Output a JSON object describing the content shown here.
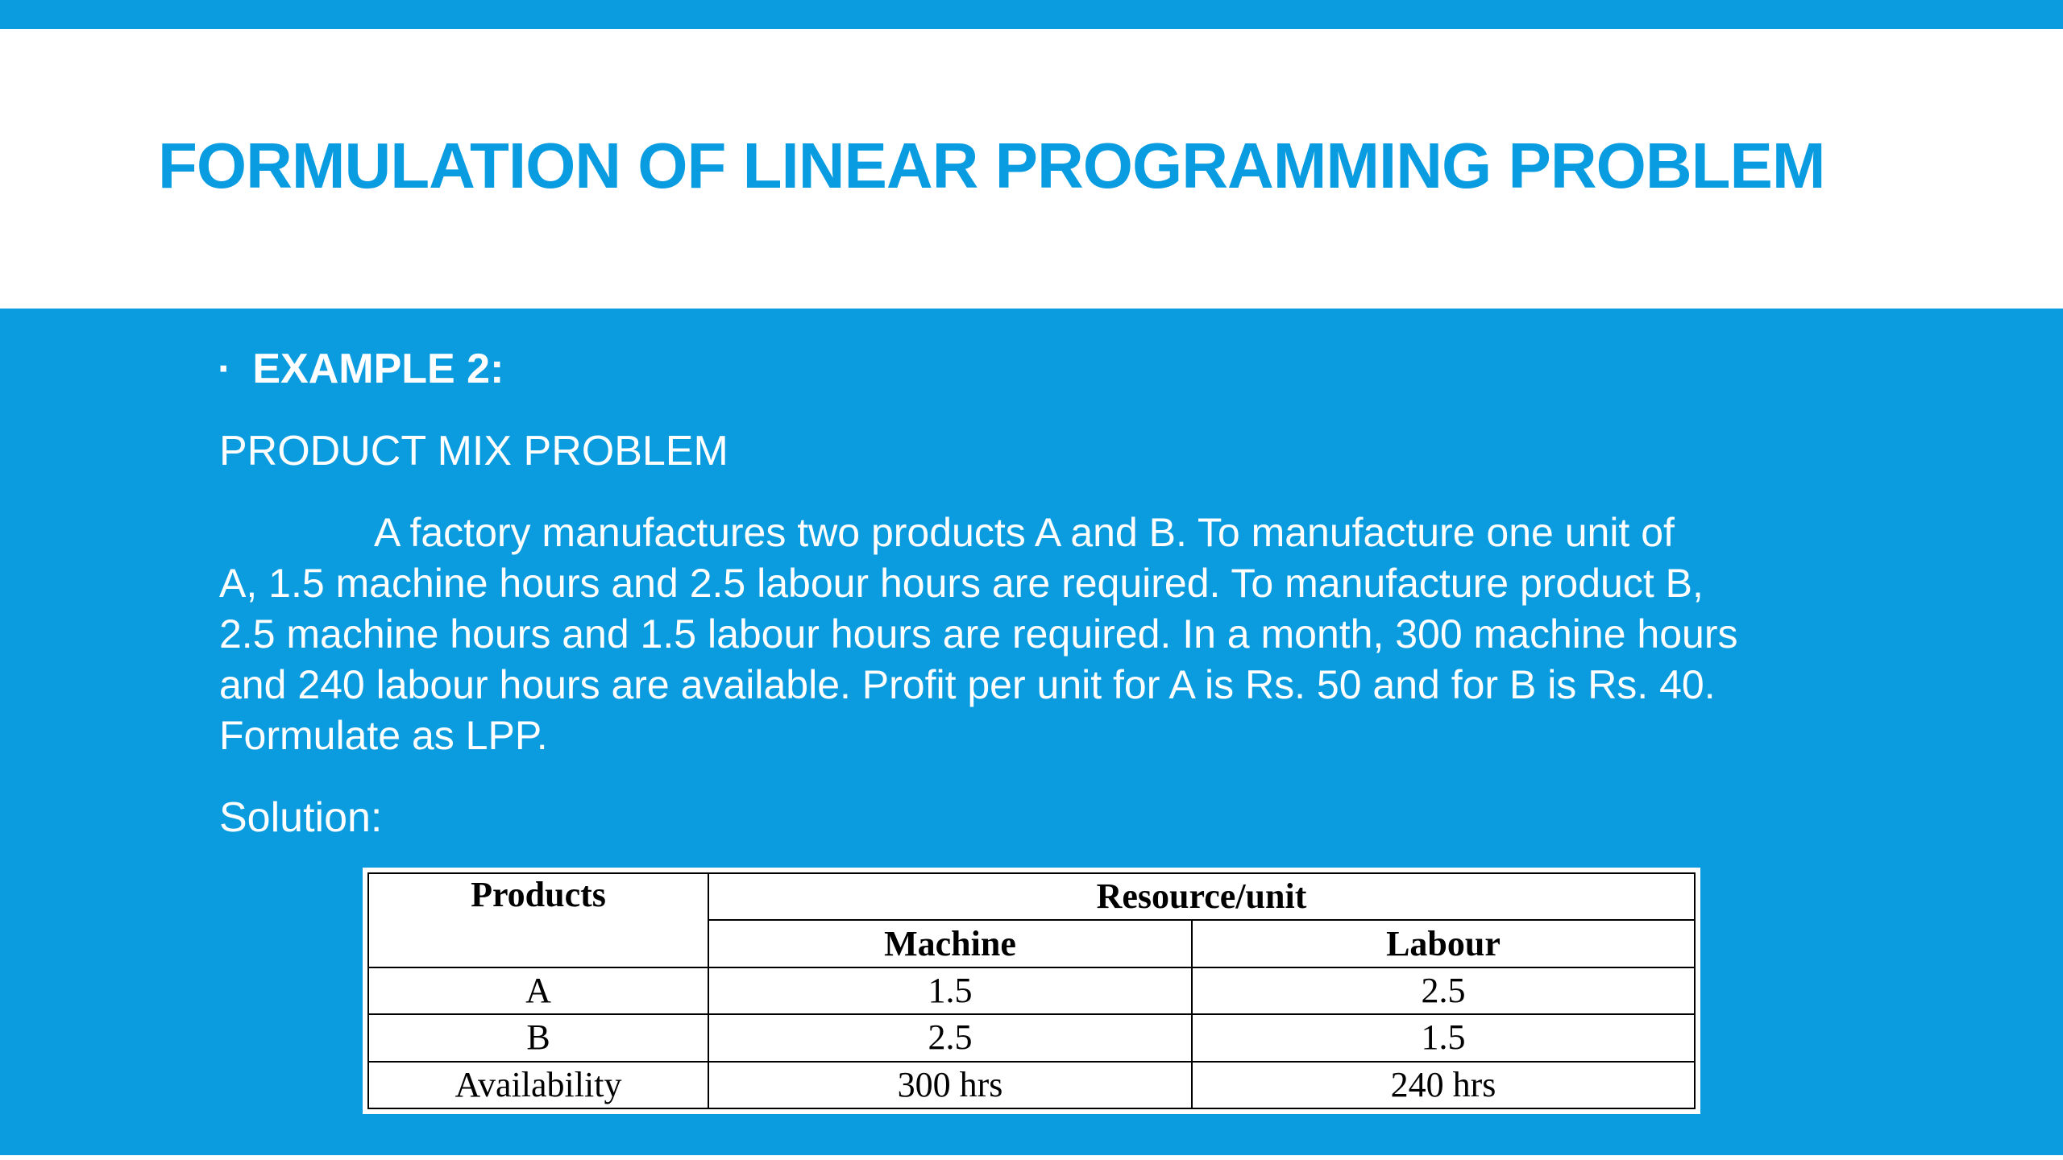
{
  "slide": {
    "title": "FORMULATION OF LINEAR PROGRAMMING PROBLEM",
    "bullet": "EXAMPLE 2:",
    "subtitle": "PRODUCT MIX PROBLEM",
    "paragraph_lines": [
      "A factory manufactures two products A and B. To manufacture one unit of",
      "A, 1.5 machine hours and 2.5 labour hours are required. To manufacture product B,",
      "2.5 machine hours and 1.5 labour hours are required. In a month, 300 machine hours",
      "and 240 labour hours are available. Profit per unit for A is Rs. 50 and for B is Rs. 40.",
      "Formulate as LPP."
    ],
    "solution_label": "Solution:"
  },
  "table": {
    "header_products": "Products",
    "header_resource": "Resource/unit",
    "header_machine": "Machine",
    "header_labour": "Labour",
    "rows": [
      {
        "product": "A",
        "machine": "1.5",
        "labour": "2.5"
      },
      {
        "product": "B",
        "machine": "2.5",
        "labour": "1.5"
      },
      {
        "product": "Availability",
        "machine": "300 hrs",
        "labour": "240 hrs"
      }
    ]
  },
  "colors": {
    "accent_blue": "#0b9ce0",
    "title_blue": "#0a9ce0",
    "background": "#ffffff"
  }
}
